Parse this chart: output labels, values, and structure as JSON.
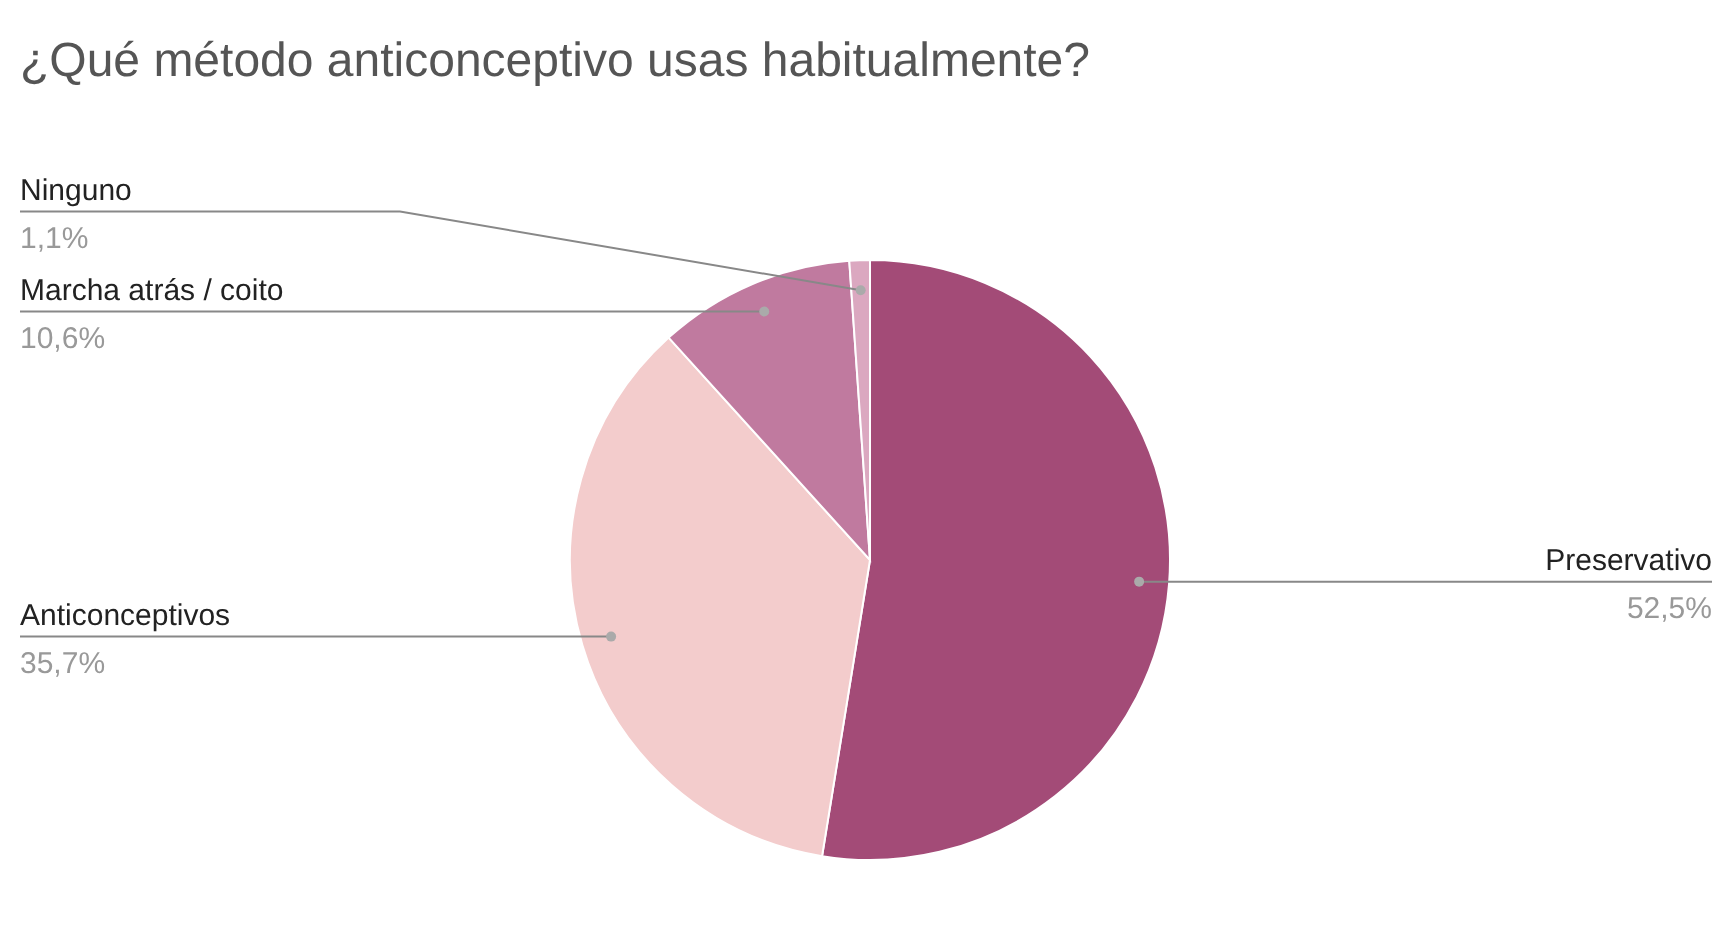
{
  "chart_data": {
    "type": "pie",
    "title": "¿Qué método anticonceptivo usas habitualmente?",
    "categories": [
      "Preservativo",
      "Anticonceptivos",
      "Marcha atrás / coito",
      "Ninguno"
    ],
    "values": [
      52.5,
      35.7,
      10.6,
      1.1
    ],
    "colors": [
      "#a34b77",
      "#f3cccc",
      "#c07a9f",
      "#dba8c0"
    ],
    "value_labels": [
      "52,5%",
      "35,7%",
      "10,6%",
      "1,1%"
    ],
    "legend": false
  }
}
